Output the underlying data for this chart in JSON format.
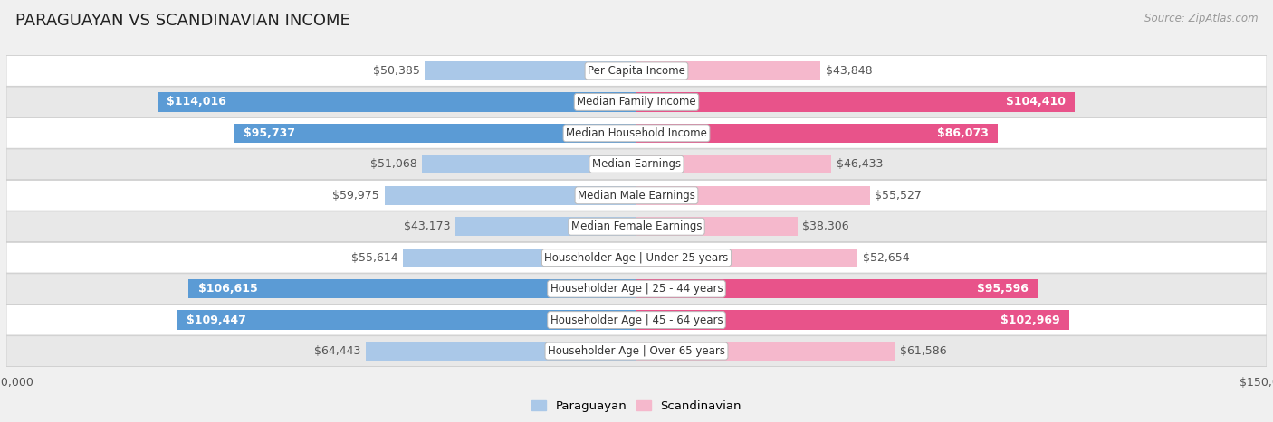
{
  "title": "PARAGUAYAN VS SCANDINAVIAN INCOME",
  "source": "Source: ZipAtlas.com",
  "categories": [
    "Per Capita Income",
    "Median Family Income",
    "Median Household Income",
    "Median Earnings",
    "Median Male Earnings",
    "Median Female Earnings",
    "Householder Age | Under 25 years",
    "Householder Age | 25 - 44 years",
    "Householder Age | 45 - 64 years",
    "Householder Age | Over 65 years"
  ],
  "paraguayan_values": [
    50385,
    114016,
    95737,
    51068,
    59975,
    43173,
    55614,
    106615,
    109447,
    64443
  ],
  "scandinavian_values": [
    43848,
    104410,
    86073,
    46433,
    55527,
    38306,
    52654,
    95596,
    102969,
    61586
  ],
  "paraguayan_labels": [
    "$50,385",
    "$114,016",
    "$95,737",
    "$51,068",
    "$59,975",
    "$43,173",
    "$55,614",
    "$106,615",
    "$109,447",
    "$64,443"
  ],
  "scandinavian_labels": [
    "$43,848",
    "$104,410",
    "$86,073",
    "$46,433",
    "$55,527",
    "$38,306",
    "$52,654",
    "$95,596",
    "$102,969",
    "$61,586"
  ],
  "paraguayan_color_light": "#aac8e8",
  "paraguayan_color_dark": "#5b9bd5",
  "scandinavian_color_light": "#f5b8cc",
  "scandinavian_color_dark": "#e8538a",
  "par_threshold": 75000,
  "sca_threshold": 75000,
  "max_value": 150000,
  "bar_height": 0.62,
  "background_color": "#f0f0f0",
  "row_color_odd": "#ffffff",
  "row_color_even": "#e8e8e8",
  "label_fontsize": 9.0,
  "category_fontsize": 8.5,
  "title_fontsize": 13,
  "outside_label_color": "#555555"
}
